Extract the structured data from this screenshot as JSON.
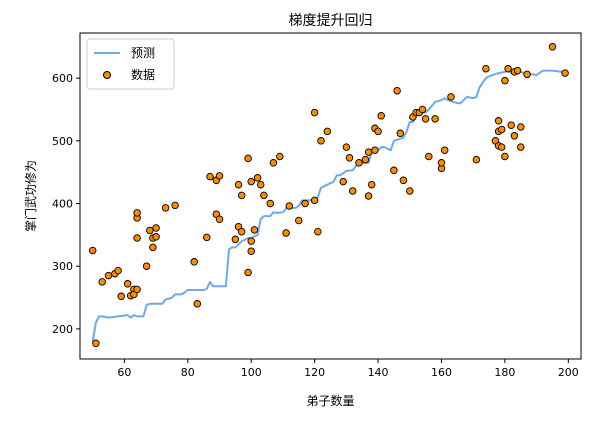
{
  "chart_data": {
    "type": "scatter",
    "title": "梯度提升回归",
    "xlabel": "弟子数量",
    "ylabel": "掌门武功修为",
    "xlim": [
      46,
      204
    ],
    "ylim": [
      152,
      672
    ],
    "xticks": [
      60,
      80,
      100,
      120,
      140,
      160,
      180,
      200
    ],
    "yticks": [
      200,
      300,
      400,
      500,
      600
    ],
    "legend": {
      "position": "top-left",
      "entries": [
        {
          "label": "预测",
          "type": "line",
          "color": "#6fa8f0"
        },
        {
          "label": "数据",
          "type": "marker",
          "color": "#ff8c00",
          "edge": "#000000"
        }
      ]
    },
    "series": [
      {
        "name": "预测",
        "type": "line",
        "color": "#6fa8f0",
        "x": [
          50,
          51,
          52,
          53,
          55,
          58,
          61,
          62,
          63,
          64,
          65,
          66,
          67,
          68,
          70,
          72,
          73,
          74,
          75,
          76,
          78,
          79,
          80,
          85,
          86,
          87,
          88,
          92,
          93,
          94,
          95,
          97,
          98,
          99,
          100,
          102,
          103,
          104,
          106,
          107,
          108,
          110,
          111,
          112,
          113,
          114,
          115,
          116,
          118,
          120,
          121,
          122,
          124,
          126,
          127,
          128,
          130,
          132,
          133,
          134,
          136,
          137,
          138,
          140,
          141,
          142,
          144,
          145,
          148,
          149,
          150,
          151,
          152,
          153,
          155,
          156,
          158,
          160,
          161,
          162,
          165,
          166,
          168,
          170,
          171,
          172,
          174,
          175,
          178,
          180,
          181,
          182,
          185,
          186,
          190,
          192,
          195,
          198,
          200
        ],
        "y": [
          180,
          210,
          220,
          220,
          218,
          220,
          222,
          218,
          222,
          220,
          220,
          220,
          238,
          240,
          240,
          240,
          247,
          248,
          250,
          255,
          255,
          258,
          262,
          262,
          264,
          275,
          268,
          268,
          327,
          330,
          330,
          340,
          342,
          345,
          345,
          350,
          375,
          380,
          380,
          386,
          385,
          386,
          392,
          395,
          393,
          393,
          396,
          405,
          405,
          406,
          410,
          425,
          430,
          435,
          445,
          445,
          452,
          453,
          460,
          465,
          465,
          465,
          483,
          485,
          490,
          490,
          485,
          500,
          505,
          515,
          530,
          530,
          540,
          545,
          545,
          550,
          562,
          565,
          568,
          565,
          560,
          560,
          570,
          568,
          570,
          585,
          600,
          603,
          608,
          610,
          615,
          608,
          610,
          608,
          605,
          612,
          612,
          610,
          610
        ]
      },
      {
        "name": "数据",
        "type": "scatter",
        "color": "#ff8c00",
        "x": [
          50,
          51,
          53,
          55,
          57,
          58,
          59,
          61,
          62,
          63,
          63,
          64,
          64,
          64,
          64,
          67,
          68,
          69,
          69,
          70,
          70,
          73,
          76,
          82,
          83,
          86,
          87,
          89,
          89,
          90,
          90,
          95,
          96,
          96,
          97,
          97,
          99,
          99,
          100,
          100,
          100,
          101,
          102,
          103,
          104,
          106,
          107,
          109,
          111,
          112,
          115,
          117,
          120,
          120,
          121,
          122,
          124,
          129,
          130,
          131,
          132,
          134,
          136,
          137,
          137,
          138,
          139,
          139,
          140,
          141,
          145,
          146,
          147,
          148,
          150,
          151,
          152,
          153,
          154,
          155,
          156,
          158,
          160,
          160,
          161,
          163,
          171,
          174,
          177,
          178,
          178,
          178,
          179,
          179,
          180,
          180,
          181,
          182,
          183,
          183,
          184,
          185,
          185,
          187,
          195,
          199
        ],
        "y": [
          325,
          177,
          275,
          285,
          288,
          293,
          252,
          272,
          253,
          263,
          255,
          377,
          385,
          263,
          345,
          300,
          357,
          330,
          345,
          361,
          347,
          393,
          397,
          307,
          240,
          346,
          443,
          383,
          437,
          375,
          444,
          343,
          430,
          363,
          355,
          413,
          290,
          472,
          435,
          340,
          324,
          358,
          441,
          430,
          413,
          400,
          465,
          475,
          353,
          396,
          373,
          400,
          405,
          545,
          355,
          500,
          515,
          435,
          490,
          473,
          420,
          465,
          470,
          412,
          482,
          430,
          520,
          485,
          515,
          540,
          453,
          580,
          512,
          437,
          420,
          538,
          545,
          545,
          550,
          535,
          475,
          535,
          456,
          465,
          485,
          570,
          470,
          615,
          500,
          492,
          515,
          532,
          518,
          490,
          475,
          596,
          615,
          525,
          508,
          610,
          612,
          522,
          490,
          606,
          650,
          608
        ]
      }
    ]
  }
}
